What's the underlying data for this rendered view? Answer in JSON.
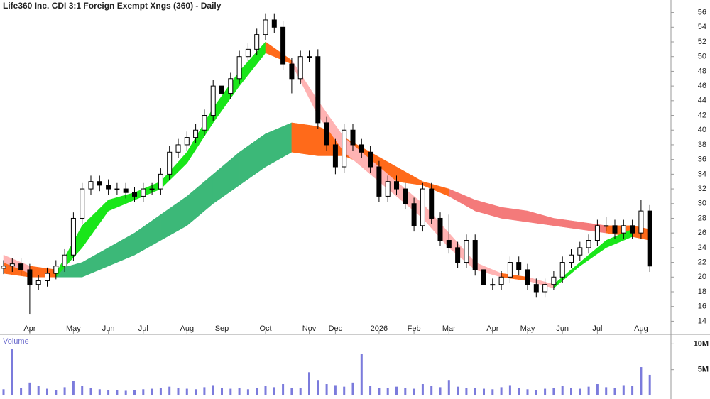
{
  "chart_data": {
    "type": "candlestick",
    "title": "Life360 Inc. CDI 3:1 Foreign Exempt Xngs (360) - Daily",
    "categories": [
      null,
      null,
      null,
      "Apr",
      null,
      null,
      null,
      null,
      "May",
      null,
      null,
      null,
      "Jun",
      null,
      null,
      null,
      "Jul",
      null,
      null,
      null,
      null,
      "Aug",
      null,
      null,
      null,
      "Sep",
      null,
      null,
      null,
      null,
      "Oct",
      null,
      null,
      null,
      null,
      "Nov",
      null,
      null,
      "Dec",
      null,
      null,
      null,
      null,
      "2026",
      null,
      null,
      null,
      "Feb",
      null,
      null,
      null,
      "Mar",
      null,
      null,
      null,
      null,
      "Apr",
      null,
      null,
      null,
      "May",
      null,
      null,
      null,
      "Jun",
      null,
      null,
      null,
      "Jul",
      null,
      null,
      null,
      null,
      "Aug",
      null
    ],
    "open": [
      21.2,
      21.5,
      21.8,
      21,
      19,
      19.5,
      20.5,
      21.5,
      23,
      28,
      32,
      33,
      32.5,
      32,
      32,
      31.5,
      31,
      32,
      32,
      34,
      37,
      38,
      39,
      40,
      42,
      46,
      45,
      47,
      50,
      51,
      53,
      55,
      54,
      49,
      47,
      50,
      50,
      41,
      38,
      35,
      40,
      38,
      37,
      35,
      31,
      33,
      32,
      30,
      27,
      32,
      28,
      25,
      24,
      22,
      25,
      21,
      19,
      19,
      20,
      22,
      21,
      19,
      18,
      19,
      20,
      22,
      23,
      24,
      25,
      27,
      27,
      26,
      27,
      26,
      29
    ],
    "high": [
      22.3,
      22.6,
      22.6,
      21.8,
      20.3,
      21.3,
      22.3,
      23.8,
      28.8,
      32.8,
      33.8,
      33.8,
      33.3,
      32.8,
      32.8,
      32.3,
      32.8,
      32.8,
      34.8,
      37.8,
      38.8,
      39.8,
      40.8,
      42.8,
      46.8,
      46.8,
      47.8,
      50.8,
      51.8,
      53.8,
      55.8,
      55.8,
      54.8,
      49.8,
      50.8,
      50.8,
      51,
      41.8,
      38.8,
      40.8,
      40.8,
      38.8,
      37.8,
      35.8,
      33.8,
      33.8,
      32.8,
      30.8,
      32.8,
      32.8,
      28.8,
      28.5,
      24.8,
      25.8,
      25.8,
      21.8,
      19.8,
      20.8,
      22.8,
      22.8,
      21.8,
      19.8,
      19.8,
      20.8,
      22.8,
      23.8,
      24.8,
      25.8,
      27.8,
      28.2,
      27.8,
      27.8,
      27.8,
      30.5,
      29.8
    ],
    "low": [
      20.4,
      20.7,
      20.2,
      15,
      18.2,
      18.7,
      19.7,
      20.7,
      22.2,
      27.2,
      31.2,
      31.7,
      31.2,
      31.2,
      30.7,
      30.2,
      30.2,
      31.2,
      31.2,
      33.2,
      36.2,
      37.2,
      38.2,
      39.2,
      41.2,
      44.2,
      44.2,
      46.2,
      49.2,
      50.2,
      52.2,
      53.2,
      48.2,
      45,
      46.2,
      49.2,
      40.2,
      37.2,
      34,
      34.2,
      37.2,
      36.2,
      34.2,
      30.2,
      30.2,
      31.2,
      29.2,
      26.2,
      26.2,
      27.2,
      24.2,
      23.2,
      21.2,
      21.2,
      20.2,
      18.2,
      18.2,
      18.2,
      19.2,
      20.2,
      18.2,
      17.2,
      17.2,
      18.2,
      19.2,
      21.2,
      22.2,
      23.2,
      24.2,
      26.2,
      25.2,
      25.2,
      25.2,
      25.2,
      20.7
    ],
    "close": [
      21.5,
      21.8,
      21,
      19,
      19.5,
      20.5,
      21.5,
      23,
      28,
      32,
      33,
      32.5,
      32,
      32,
      31.5,
      31,
      32,
      32,
      34,
      37,
      38,
      39,
      40,
      42,
      46,
      45,
      47,
      50,
      51,
      53,
      55,
      54,
      49,
      47,
      50,
      50,
      41,
      38,
      35,
      40,
      38,
      37,
      35,
      31,
      33,
      32,
      30,
      27,
      32,
      28,
      25,
      24,
      22,
      25,
      21,
      19,
      19,
      20,
      22,
      21,
      19,
      18,
      19,
      20,
      22,
      23,
      24,
      25,
      27,
      27,
      26,
      27,
      26,
      29,
      21.5
    ],
    "ylim": [
      12.3,
      57.7
    ],
    "yticks": [
      14,
      16,
      18,
      20,
      22,
      24,
      26,
      28,
      30,
      32,
      34,
      36,
      38,
      40,
      42,
      44,
      46,
      48,
      50,
      52,
      54,
      56
    ],
    "ribbons": [
      {
        "x": [
          0,
          3,
          6,
          9,
          12,
          15,
          18,
          21,
          24,
          27,
          30,
          33,
          36,
          39,
          42,
          45,
          48,
          51,
          54,
          57,
          60,
          63,
          66,
          69,
          72,
          74
        ],
        "upper": [
          22,
          21.5,
          21,
          22,
          24,
          26,
          28.5,
          31,
          34,
          37,
          39.5,
          41,
          40.5,
          39,
          37,
          35,
          33,
          32,
          30.5,
          29.5,
          29,
          28,
          27.5,
          27,
          27,
          26.5
        ],
        "lower": [
          20.5,
          20,
          20,
          20,
          21.5,
          23,
          25,
          27,
          30,
          32.5,
          35,
          37,
          36.5,
          36.5,
          35,
          33,
          32.5,
          31,
          29,
          28,
          27.5,
          27,
          26.5,
          26,
          25.5,
          25.5
        ],
        "segment_colors": [
          "#ff6a1a",
          "#ff6a1a",
          "#3cb878",
          "#3cb878",
          "#3cb878",
          "#3cb878",
          "#3cb878",
          "#3cb878",
          "#3cb878",
          "#3cb878",
          "#3cb878",
          "#ff6a1a",
          "#ff6a1a",
          "#ff6a1a",
          "#ff6a1a",
          "#ff6a1a",
          "#ff6a1a",
          "#f47a7a",
          "#f47a7a",
          "#f47a7a",
          "#f47a7a",
          "#f47a7a",
          "#f47a7a",
          "#ff6a1a",
          "#ff6a1a"
        ]
      },
      {
        "x": [
          0,
          3,
          6,
          9,
          12,
          15,
          18,
          21,
          24,
          27,
          30,
          33,
          36,
          39,
          42,
          45,
          48,
          51,
          54,
          57,
          60,
          63,
          66,
          69,
          72,
          74
        ],
        "upper": [
          23,
          21.5,
          20.5,
          27,
          30.5,
          31.5,
          33,
          37,
          43,
          48,
          52,
          49.5,
          44,
          39,
          36,
          33,
          30,
          26,
          22,
          20.5,
          20,
          19,
          22,
          25,
          26.5,
          25.5
        ],
        "lower": [
          22,
          20.5,
          20,
          24,
          29,
          30.5,
          32,
          35.5,
          41,
          46,
          50.5,
          49,
          42,
          37,
          34,
          31,
          28,
          24,
          21,
          20,
          19.5,
          18.5,
          21.5,
          24,
          25.5,
          25
        ],
        "segment_colors": [
          "#ffb3b3",
          "#ff6a1a",
          "#19e619",
          "#19e619",
          "#19e619",
          "#19e619",
          "#19e619",
          "#19e619",
          "#19e619",
          "#19e619",
          "#ff6a1a",
          "#ffb3b3",
          "#ffb3b3",
          "#ffb3b3",
          "#ffb3b3",
          "#ffb3b3",
          "#ffb3b3",
          "#ffb3b3",
          "#ffb3b3",
          "#ff6a1a",
          "#ffb3b3",
          "#19e619",
          "#19e619",
          "#19e619",
          "#ff6a1a"
        ]
      }
    ],
    "volume": {
      "label": "Volume",
      "color": "#7b7bdc",
      "values": [
        1200000,
        9000000,
        1500000,
        2500000,
        1800000,
        1300000,
        1100000,
        1600000,
        2800000,
        1900000,
        1400000,
        1200000,
        1000000,
        1100000,
        900000,
        1000000,
        1200000,
        1300000,
        1500000,
        1700000,
        1400000,
        1300000,
        1200000,
        1600000,
        2000000,
        1500000,
        1300000,
        1400000,
        1200000,
        1500000,
        1800000,
        1600000,
        2200000,
        1500000,
        1400000,
        4500000,
        3000000,
        2200000,
        2000000,
        1700000,
        2500000,
        8000000,
        1800000,
        1500000,
        1400000,
        1700000,
        1500000,
        1300000,
        2200000,
        1800000,
        1600000,
        3000000,
        1700000,
        1400000,
        1500000,
        1300000,
        1200000,
        1600000,
        2000000,
        1500000,
        1200000,
        1100000,
        1300000,
        1500000,
        1800000,
        1400000,
        1300000,
        1700000,
        2200000,
        1600000,
        1500000,
        2000000,
        1800000,
        5500000,
        4000000
      ],
      "ylim": [
        0,
        11700000
      ],
      "yticks": [
        {
          "value": 5000000,
          "label": "5M"
        },
        {
          "value": 10000000,
          "label": "10M"
        }
      ]
    }
  }
}
